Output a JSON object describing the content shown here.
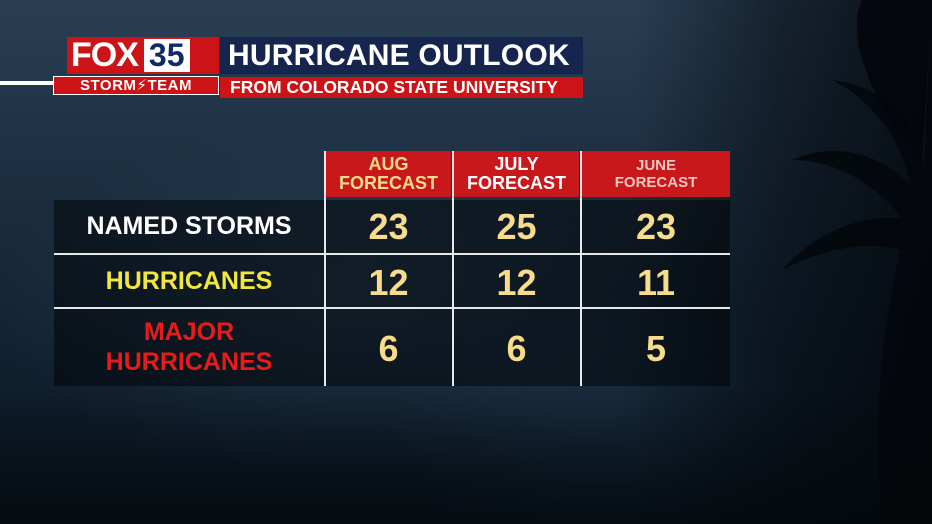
{
  "logo": {
    "brand": "FOX",
    "channel": "35",
    "team": "STORM⚡TEAM"
  },
  "header": {
    "title": "HURRICANE OUTLOOK",
    "subtitle": "FROM COLORADO STATE UNIVERSITY"
  },
  "table": {
    "columns": [
      {
        "line1": "AUG",
        "line2": "FORECAST"
      },
      {
        "line1": "JULY",
        "line2": "FORECAST"
      },
      {
        "line1": "JUNE",
        "line2": "FORECAST"
      }
    ],
    "rows": [
      {
        "label_line1": "NAMED STORMS",
        "label_line2": "",
        "values": [
          "23",
          "25",
          "23"
        ]
      },
      {
        "label_line1": "HURRICANES",
        "label_line2": "",
        "values": [
          "12",
          "12",
          "11"
        ]
      },
      {
        "label_line1": "MAJOR",
        "label_line2": "HURRICANES",
        "values": [
          "6",
          "6",
          "5"
        ]
      }
    ]
  },
  "colors": {
    "brand_red": "#cc1418",
    "title_navy": "#16254e",
    "value_gold": "#f6dc8c",
    "hurricanes_yellow": "#f2e640",
    "major_red": "#e81a1a"
  }
}
